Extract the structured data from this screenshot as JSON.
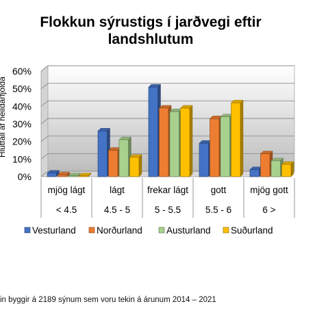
{
  "chart_data": {
    "type": "bar",
    "title": "Flokkun sýrustigs í jarðvegi eftir landshlutum",
    "ylabel": "Hlutfall af heildarfjölda",
    "ylim": [
      0,
      0.6
    ],
    "ytick_labels": [
      "0%",
      "10%",
      "20%",
      "30%",
      "40%",
      "50%",
      "60%"
    ],
    "categories": [
      "mjög lágt",
      "lágt",
      "frekar lágt",
      "gott",
      "mjög gott"
    ],
    "category_ranges": [
      "< 4.5",
      "4.5 - 5",
      "5 - 5.5",
      "5.5 - 6",
      "6 >"
    ],
    "series": [
      {
        "name": "Vesturland",
        "color": "#4472C4",
        "values": [
          0.02,
          0.26,
          0.51,
          0.19,
          0.04
        ]
      },
      {
        "name": "Norðurland",
        "color": "#ED7D31",
        "values": [
          0.01,
          0.15,
          0.39,
          0.33,
          0.13
        ]
      },
      {
        "name": "Austurland",
        "color": "#A9D18E",
        "values": [
          0.005,
          0.21,
          0.37,
          0.34,
          0.09
        ]
      },
      {
        "name": "Suðurland",
        "color": "#FFC000",
        "values": [
          0.005,
          0.11,
          0.39,
          0.42,
          0.07
        ]
      }
    ],
    "grid": true,
    "legend_position": "bottom"
  },
  "footnote": "in byggir á 2189  sýnum sem voru tekin á árunum 2014 – 2021"
}
